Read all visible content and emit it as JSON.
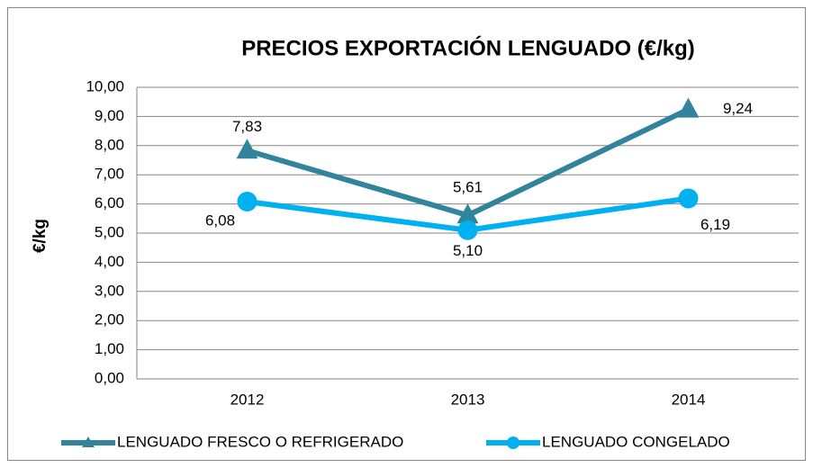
{
  "chart_data": {
    "type": "line",
    "title": "PRECIOS EXPORTACIÓN LENGUADO (€/kg)",
    "y_label": "€/kg",
    "categories": [
      "2012",
      "2013",
      "2014"
    ],
    "series": [
      {
        "name": "LENGUADO FRESCO O REFRIGERADO",
        "color": "#31849b",
        "marker": "triangle",
        "values": [
          7.83,
          5.61,
          9.24
        ],
        "value_labels": [
          "7,83",
          "5,61",
          "9,24"
        ]
      },
      {
        "name": "LENGUADO CONGELADO",
        "color": "#00b0f0",
        "marker": "circle",
        "values": [
          6.08,
          5.1,
          6.19
        ],
        "value_labels": [
          "6,08",
          "5,10",
          "6,19"
        ]
      }
    ],
    "ylim": [
      0,
      10
    ],
    "yticks": [
      {
        "value": 0,
        "label": "0,00"
      },
      {
        "value": 1,
        "label": "1,00"
      },
      {
        "value": 2,
        "label": "2,00"
      },
      {
        "value": 3,
        "label": "3,00"
      },
      {
        "value": 4,
        "label": "4,00"
      },
      {
        "value": 5,
        "label": "5,00"
      },
      {
        "value": 6,
        "label": "6,00"
      },
      {
        "value": 7,
        "label": "7,00"
      },
      {
        "value": 8,
        "label": "8,00"
      },
      {
        "value": 9,
        "label": "9,00"
      },
      {
        "value": 10,
        "label": "10,00"
      }
    ],
    "grid": true,
    "legend": "bottom"
  }
}
